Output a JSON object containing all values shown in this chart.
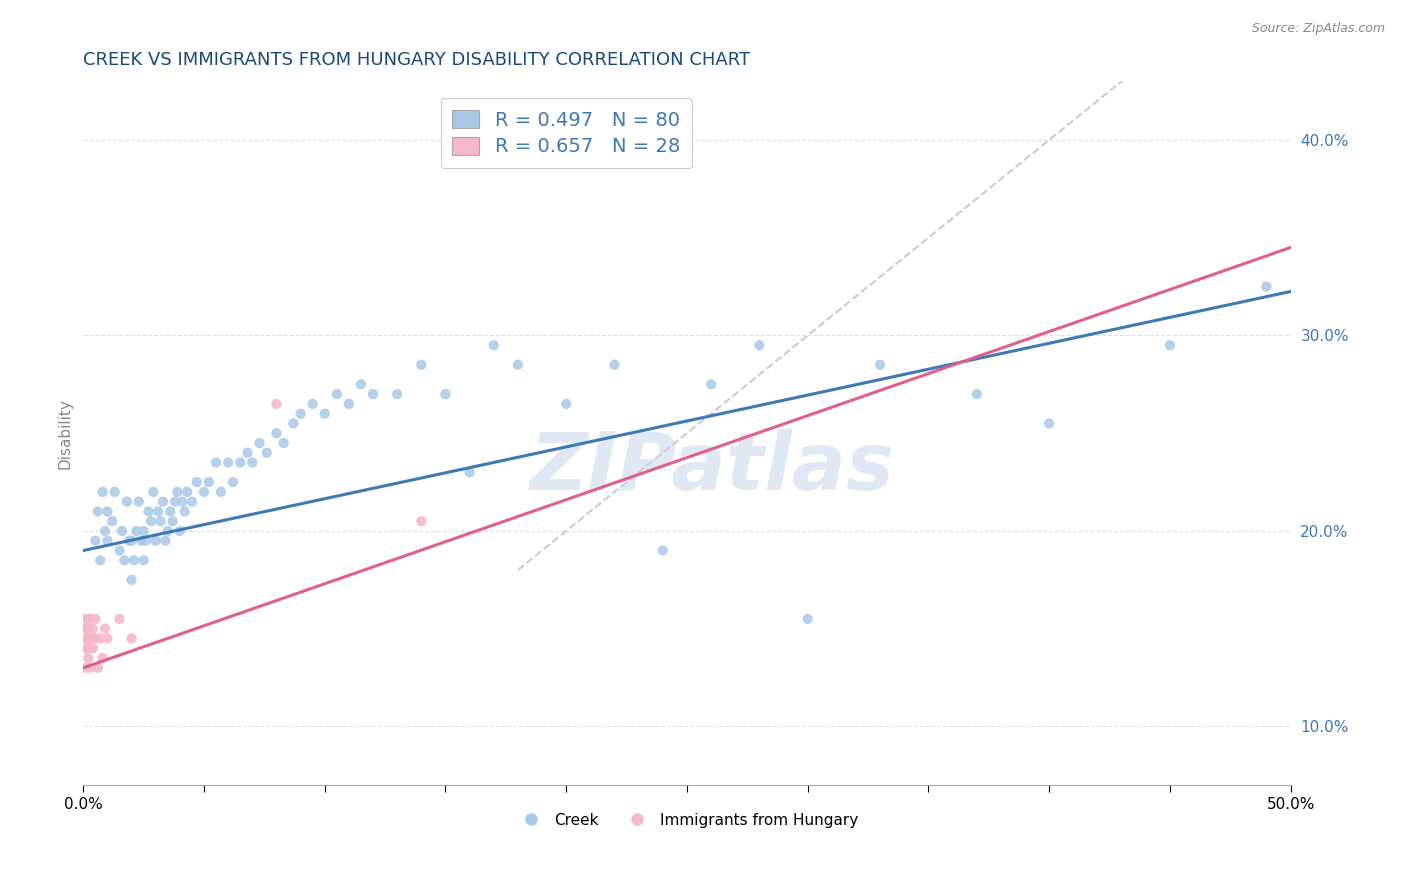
{
  "title": "CREEK VS IMMIGRANTS FROM HUNGARY DISABILITY CORRELATION CHART",
  "source_text": "Source: ZipAtlas.com",
  "ylabel": "Disability",
  "xlim": [
    0.0,
    0.5
  ],
  "ylim": [
    0.07,
    0.43
  ],
  "xticks": [
    0.0,
    0.05,
    0.1,
    0.15,
    0.2,
    0.25,
    0.3,
    0.35,
    0.4,
    0.45,
    0.5
  ],
  "xtick_labels": [
    "0.0%",
    "",
    "",
    "",
    "",
    "",
    "",
    "",
    "",
    "",
    "50.0%"
  ],
  "yticks": [
    0.1,
    0.2,
    0.3,
    0.4
  ],
  "blue_color": "#a8c8e8",
  "pink_color": "#f5b8c8",
  "trend_blue": "#3d7ab5",
  "trend_pink": "#e0608a",
  "title_color": "#1a4a7a",
  "label_color": "#3d7ab5",
  "R_blue": 0.497,
  "N_blue": 80,
  "R_pink": 0.657,
  "N_pink": 28,
  "creek_label": "Creek",
  "hungary_label": "Immigrants from Hungary",
  "blue_intercept": 0.19,
  "blue_slope": 0.265,
  "pink_intercept": 0.13,
  "pink_slope": 0.43,
  "creek_x": [
    0.005,
    0.006,
    0.007,
    0.008,
    0.009,
    0.01,
    0.01,
    0.012,
    0.013,
    0.015,
    0.016,
    0.017,
    0.018,
    0.019,
    0.02,
    0.02,
    0.021,
    0.022,
    0.023,
    0.024,
    0.025,
    0.025,
    0.026,
    0.027,
    0.028,
    0.029,
    0.03,
    0.031,
    0.032,
    0.033,
    0.034,
    0.035,
    0.036,
    0.037,
    0.038,
    0.039,
    0.04,
    0.041,
    0.042,
    0.043,
    0.045,
    0.047,
    0.05,
    0.052,
    0.055,
    0.057,
    0.06,
    0.062,
    0.065,
    0.068,
    0.07,
    0.073,
    0.076,
    0.08,
    0.083,
    0.087,
    0.09,
    0.095,
    0.1,
    0.105,
    0.11,
    0.115,
    0.12,
    0.13,
    0.14,
    0.15,
    0.16,
    0.17,
    0.18,
    0.2,
    0.22,
    0.24,
    0.26,
    0.28,
    0.3,
    0.33,
    0.37,
    0.4,
    0.45,
    0.49
  ],
  "creek_y": [
    0.195,
    0.21,
    0.185,
    0.22,
    0.2,
    0.195,
    0.21,
    0.205,
    0.22,
    0.19,
    0.2,
    0.185,
    0.215,
    0.195,
    0.175,
    0.195,
    0.185,
    0.2,
    0.215,
    0.195,
    0.185,
    0.2,
    0.195,
    0.21,
    0.205,
    0.22,
    0.195,
    0.21,
    0.205,
    0.215,
    0.195,
    0.2,
    0.21,
    0.205,
    0.215,
    0.22,
    0.2,
    0.215,
    0.21,
    0.22,
    0.215,
    0.225,
    0.22,
    0.225,
    0.235,
    0.22,
    0.235,
    0.225,
    0.235,
    0.24,
    0.235,
    0.245,
    0.24,
    0.25,
    0.245,
    0.255,
    0.26,
    0.265,
    0.26,
    0.27,
    0.265,
    0.275,
    0.27,
    0.27,
    0.285,
    0.27,
    0.23,
    0.295,
    0.285,
    0.265,
    0.285,
    0.19,
    0.275,
    0.295,
    0.155,
    0.285,
    0.27,
    0.255,
    0.295,
    0.325
  ],
  "hungary_x": [
    0.001,
    0.001,
    0.001,
    0.001,
    0.001,
    0.002,
    0.002,
    0.002,
    0.002,
    0.002,
    0.003,
    0.003,
    0.003,
    0.003,
    0.004,
    0.004,
    0.004,
    0.005,
    0.005,
    0.006,
    0.007,
    0.008,
    0.009,
    0.01,
    0.015,
    0.02,
    0.08,
    0.14
  ],
  "hungary_y": [
    0.145,
    0.155,
    0.14,
    0.15,
    0.13,
    0.145,
    0.135,
    0.15,
    0.14,
    0.155,
    0.13,
    0.145,
    0.14,
    0.155,
    0.14,
    0.15,
    0.145,
    0.145,
    0.155,
    0.13,
    0.145,
    0.135,
    0.15,
    0.145,
    0.155,
    0.145,
    0.265,
    0.205
  ],
  "watermark": "ZIPatlas",
  "ref_line_x": [
    0.18,
    0.5
  ],
  "ref_line_y": [
    0.18,
    0.5
  ]
}
